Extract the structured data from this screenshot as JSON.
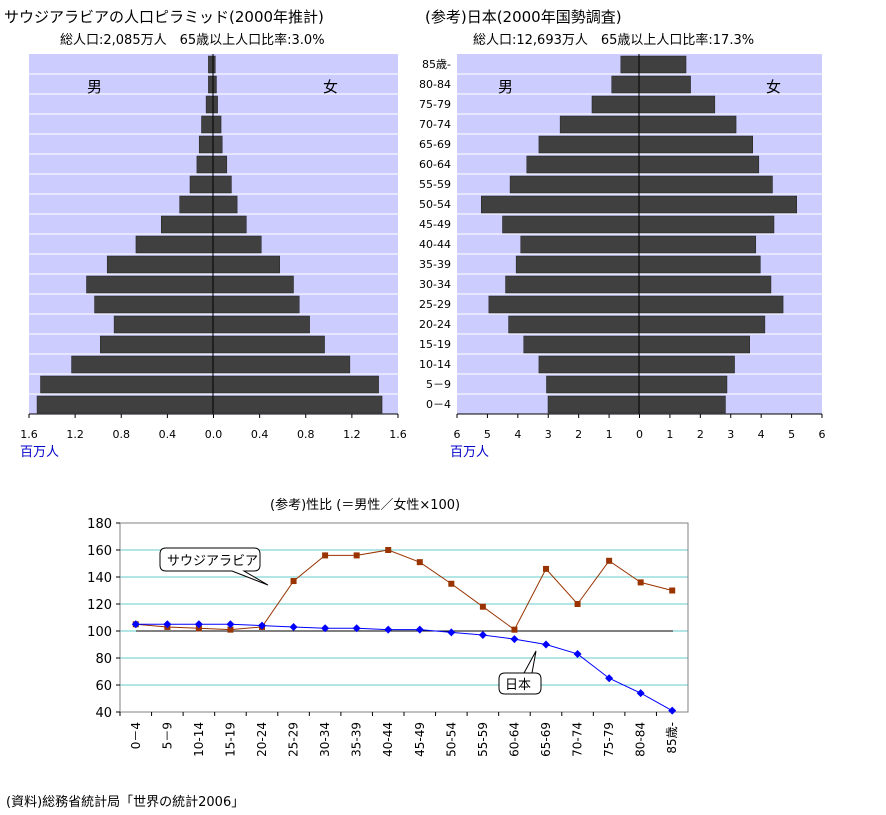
{
  "chart_data": [
    {
      "type": "bar",
      "subtype": "population-pyramid",
      "title": "サウジアラビアの人口ピラミッド(2000年推計)",
      "subtitle": "総人口:2,085万人　65歳以上人口比率:3.0%",
      "male_label": "男",
      "female_label": "女",
      "unit_label": "百万人",
      "x_ticks": [
        "1.6",
        "1.2",
        "0.8",
        "0.4",
        "0.0",
        "0.4",
        "0.8",
        "1.2",
        "1.6"
      ],
      "xlim": [
        -1.6,
        1.6
      ],
      "categories": [
        "0-4",
        "5-9",
        "10-14",
        "15-19",
        "20-24",
        "25-29",
        "30-34",
        "35-39",
        "40-44",
        "45-49",
        "50-54",
        "55-59",
        "60-64",
        "65-69",
        "70-74",
        "75-79",
        "80-84",
        "85-"
      ],
      "male": [
        1.53,
        1.5,
        1.23,
        0.98,
        0.86,
        1.03,
        1.1,
        0.92,
        0.67,
        0.45,
        0.29,
        0.2,
        0.14,
        0.12,
        0.1,
        0.06,
        0.04,
        0.04
      ],
      "female": [
        1.47,
        1.44,
        1.19,
        0.97,
        0.84,
        0.75,
        0.7,
        0.58,
        0.42,
        0.29,
        0.21,
        0.16,
        0.12,
        0.08,
        0.07,
        0.04,
        0.03,
        0.02
      ],
      "colors": {
        "bar": "#404040",
        "background": "#ccccff",
        "grid": "#ffffff"
      }
    },
    {
      "type": "bar",
      "subtype": "population-pyramid",
      "title": "(参考)日本(2000年国勢調査)",
      "subtitle": "総人口:12,693万人　65歳以上人口比率:17.3%",
      "male_label": "男",
      "female_label": "女",
      "unit_label": "百万人",
      "x_ticks": [
        "6",
        "5",
        "4",
        "3",
        "2",
        "1",
        "0",
        "1",
        "2",
        "3",
        "4",
        "5",
        "6"
      ],
      "xlim": [
        -6,
        6
      ],
      "categories": [
        "0-4",
        "5-9",
        "10-14",
        "15-19",
        "20-24",
        "25-29",
        "30-34",
        "35-39",
        "40-44",
        "45-49",
        "50-54",
        "55-59",
        "60-64",
        "65-69",
        "70-74",
        "75-79",
        "80-84",
        "85-"
      ],
      "category_labels": [
        "0－4",
        "5－9",
        "10-14",
        "15-19",
        "20-24",
        "25-29",
        "30-34",
        "35-39",
        "40-44",
        "45-49",
        "50-54",
        "55-59",
        "60-64",
        "65-69",
        "70-74",
        "75-79",
        "80-84",
        "85歳-"
      ],
      "male": [
        3.0,
        3.05,
        3.3,
        3.8,
        4.3,
        4.95,
        4.4,
        4.05,
        3.9,
        4.5,
        5.2,
        4.25,
        3.7,
        3.3,
        2.6,
        1.55,
        0.9,
        0.6
      ],
      "female": [
        2.85,
        2.9,
        3.15,
        3.65,
        4.15,
        4.75,
        4.35,
        4.0,
        3.85,
        4.45,
        5.2,
        4.4,
        3.95,
        3.75,
        3.2,
        2.5,
        1.7,
        1.55
      ],
      "colors": {
        "bar": "#404040",
        "background": "#ccccff",
        "grid": "#ffffff"
      }
    },
    {
      "type": "line",
      "title": "(参考)性比 (＝男性／女性×100)",
      "categories": [
        "0－4",
        "5－9",
        "10-14",
        "15-19",
        "20-24",
        "25-29",
        "30-34",
        "35-39",
        "40-44",
        "45-49",
        "50-54",
        "55-59",
        "60-64",
        "65-69",
        "70-74",
        "75-79",
        "80-84",
        "85歳-"
      ],
      "ylim": [
        40,
        180
      ],
      "y_ticks": [
        "180",
        "160",
        "140",
        "120",
        "100",
        "80",
        "60",
        "40"
      ],
      "reference_value": 100,
      "grid": true,
      "series": [
        {
          "name": "サウジアラビア",
          "color": "#993300",
          "values": [
            105,
            103,
            102,
            101,
            103,
            137,
            156,
            156,
            160,
            151,
            135,
            118,
            101,
            146,
            120,
            152,
            136,
            130
          ]
        },
        {
          "name": "日本",
          "color": "#0000ff",
          "values": [
            105,
            105,
            105,
            105,
            104,
            103,
            102,
            102,
            101,
            101,
            99,
            97,
            94,
            90,
            83,
            65,
            54,
            41
          ]
        }
      ]
    }
  ],
  "source": "(資料)総務省統計局「世界の統計2006」"
}
